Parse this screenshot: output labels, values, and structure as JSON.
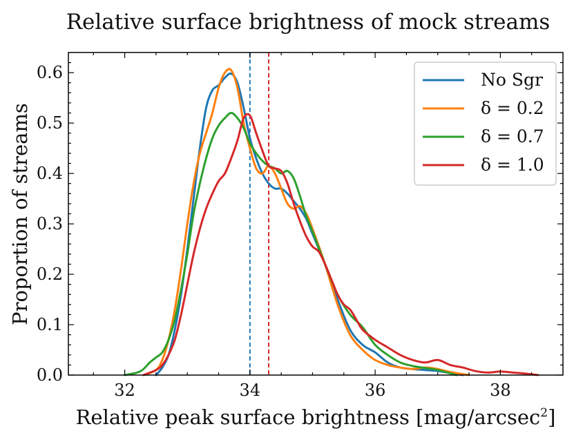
{
  "chart_data": {
    "type": "line",
    "title": "Relative surface brightness of mock streams",
    "xlabel": "Relative peak surface brightness [mag/arcsec",
    "xlabel_superscript": "2",
    "xlabel_suffix": "]",
    "ylabel": "Proportion of streams",
    "xlim": [
      31.1,
      39.0
    ],
    "ylim": [
      0.0,
      0.64
    ],
    "xticks": [
      32,
      34,
      36,
      38
    ],
    "xtick_labels": [
      "32",
      "34",
      "36",
      "38"
    ],
    "yticks": [
      0.0,
      0.1,
      0.2,
      0.3,
      0.4,
      0.5,
      0.6
    ],
    "ytick_labels": [
      "0.0",
      "0.1",
      "0.2",
      "0.3",
      "0.4",
      "0.5",
      "0.6"
    ],
    "legend_position": "top-right",
    "vlines": [
      {
        "x": 34.0,
        "color": "#1f77b4"
      },
      {
        "x": 34.3,
        "color": "#d62728"
      }
    ],
    "series": [
      {
        "name": "No Sgr",
        "legend_label": "No Sgr",
        "color": "#1f77b4",
        "x": [
          32.5,
          32.6,
          32.7,
          32.8,
          32.9,
          33.0,
          33.1,
          33.2,
          33.3,
          33.4,
          33.5,
          33.6,
          33.7,
          33.8,
          33.9,
          34.0,
          34.1,
          34.2,
          34.3,
          34.4,
          34.5,
          34.6,
          34.7,
          34.8,
          34.9,
          35.0,
          35.2,
          35.4,
          35.6,
          35.8,
          36.0,
          36.2,
          36.4,
          36.6,
          36.8,
          37.0,
          37.2,
          37.4
        ],
        "y": [
          0.0,
          0.015,
          0.04,
          0.09,
          0.16,
          0.25,
          0.35,
          0.45,
          0.53,
          0.565,
          0.575,
          0.59,
          0.598,
          0.58,
          0.53,
          0.47,
          0.43,
          0.4,
          0.38,
          0.37,
          0.37,
          0.36,
          0.345,
          0.33,
          0.31,
          0.28,
          0.22,
          0.15,
          0.09,
          0.06,
          0.045,
          0.025,
          0.015,
          0.012,
          0.01,
          0.008,
          0.004,
          0.0
        ]
      },
      {
        "name": "delta 0.2",
        "legend_label": "δ = 0.2",
        "color": "#ff7f0e",
        "x": [
          32.3,
          32.5,
          32.6,
          32.7,
          32.8,
          32.9,
          33.0,
          33.1,
          33.2,
          33.3,
          33.4,
          33.5,
          33.6,
          33.7,
          33.8,
          33.9,
          34.0,
          34.1,
          34.2,
          34.3,
          34.4,
          34.5,
          34.6,
          34.7,
          34.8,
          34.9,
          35.0,
          35.2,
          35.4,
          35.6,
          35.8,
          36.0,
          36.2,
          36.4,
          36.6,
          36.8,
          37.0,
          37.2,
          37.5
        ],
        "y": [
          0.0,
          0.01,
          0.03,
          0.07,
          0.13,
          0.21,
          0.3,
          0.38,
          0.44,
          0.48,
          0.52,
          0.57,
          0.6,
          0.605,
          0.57,
          0.5,
          0.45,
          0.41,
          0.4,
          0.415,
          0.4,
          0.37,
          0.34,
          0.33,
          0.335,
          0.32,
          0.29,
          0.22,
          0.14,
          0.08,
          0.05,
          0.03,
          0.02,
          0.015,
          0.012,
          0.015,
          0.012,
          0.006,
          0.0
        ]
      },
      {
        "name": "delta 0.7",
        "legend_label": "δ = 0.7",
        "color": "#2ca02c",
        "x": [
          32.0,
          32.2,
          32.3,
          32.4,
          32.5,
          32.6,
          32.7,
          32.8,
          32.9,
          33.0,
          33.1,
          33.2,
          33.3,
          33.4,
          33.5,
          33.6,
          33.7,
          33.8,
          33.9,
          34.0,
          34.1,
          34.2,
          34.3,
          34.4,
          34.5,
          34.6,
          34.7,
          34.8,
          34.9,
          35.0,
          35.2,
          35.4,
          35.6,
          35.8,
          36.0,
          36.2,
          36.4,
          36.6,
          36.8,
          37.0,
          37.3
        ],
        "y": [
          0.0,
          0.005,
          0.012,
          0.025,
          0.035,
          0.045,
          0.07,
          0.11,
          0.17,
          0.24,
          0.32,
          0.38,
          0.43,
          0.47,
          0.495,
          0.51,
          0.52,
          0.51,
          0.49,
          0.46,
          0.44,
          0.425,
          0.415,
          0.41,
          0.4,
          0.405,
          0.39,
          0.355,
          0.315,
          0.285,
          0.22,
          0.16,
          0.12,
          0.095,
          0.06,
          0.04,
          0.025,
          0.018,
          0.014,
          0.01,
          0.0
        ]
      },
      {
        "name": "delta 1.0",
        "legend_label": "δ = 1.0",
        "color": "#d62728",
        "x": [
          32.3,
          32.5,
          32.6,
          32.7,
          32.8,
          32.9,
          33.0,
          33.1,
          33.2,
          33.3,
          33.4,
          33.5,
          33.6,
          33.7,
          33.8,
          33.9,
          34.0,
          34.1,
          34.2,
          34.3,
          34.4,
          34.5,
          34.6,
          34.7,
          34.8,
          34.9,
          35.0,
          35.1,
          35.2,
          35.3,
          35.4,
          35.5,
          35.6,
          35.7,
          35.8,
          36.0,
          36.2,
          36.4,
          36.6,
          36.8,
          37.0,
          37.2,
          37.4,
          37.6,
          37.8,
          38.0,
          38.2,
          38.4,
          38.6
        ],
        "y": [
          0.0,
          0.01,
          0.02,
          0.04,
          0.07,
          0.12,
          0.18,
          0.24,
          0.29,
          0.33,
          0.36,
          0.385,
          0.4,
          0.43,
          0.465,
          0.51,
          0.515,
          0.48,
          0.445,
          0.415,
          0.41,
          0.405,
          0.38,
          0.34,
          0.305,
          0.275,
          0.255,
          0.245,
          0.22,
          0.19,
          0.16,
          0.14,
          0.13,
          0.11,
          0.09,
          0.07,
          0.055,
          0.04,
          0.03,
          0.025,
          0.03,
          0.02,
          0.015,
          0.008,
          0.005,
          0.007,
          0.005,
          0.003,
          0.0
        ]
      }
    ]
  }
}
